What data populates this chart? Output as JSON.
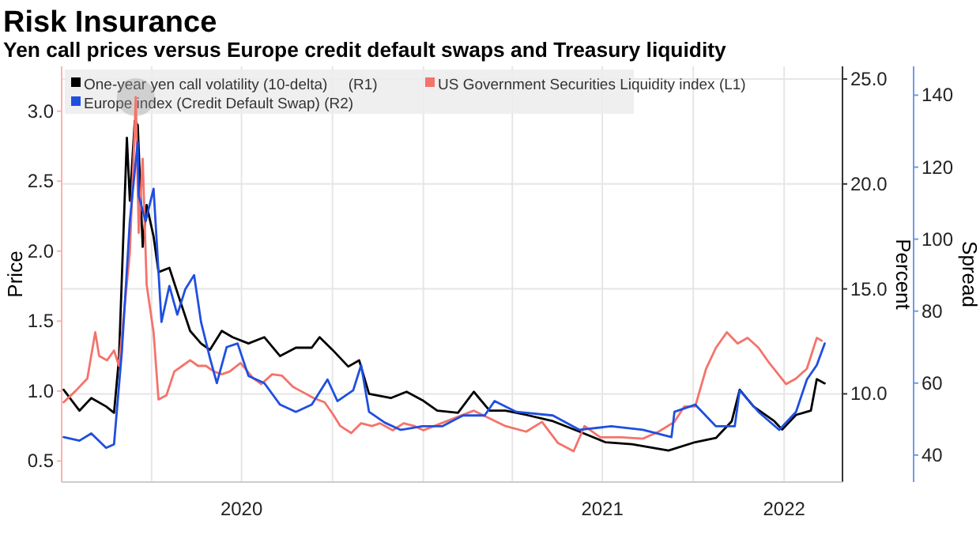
{
  "chart_data": {
    "type": "line",
    "title": "Risk Insurance",
    "subtitle": "Yen call prices versus Europe credit default swaps and Treasury liquidity",
    "ylabel": "Price",
    "y2label": "Percent",
    "y3label": "Spread",
    "xlim": [
      "2020-01-01",
      "2022-03-01"
    ],
    "xticks": [
      {
        "value": "2020-04-01",
        "label": null
      },
      {
        "value": "2020-07-01",
        "label": "2020"
      },
      {
        "value": "2020-10-01",
        "label": null
      },
      {
        "value": "2021-01-01",
        "label": null
      },
      {
        "value": "2021-04-01",
        "label": null
      },
      {
        "value": "2021-07-01",
        "label": "2021"
      },
      {
        "value": "2021-10-01",
        "label": null
      },
      {
        "value": "2022-01-01",
        "label": "2022"
      }
    ],
    "ylim": [
      0.35,
      3.32
    ],
    "yticks": [
      {
        "value": 0.5,
        "label": "0.5"
      },
      {
        "value": 1,
        "label": "1.0"
      },
      {
        "value": 1.5,
        "label": "1.5"
      },
      {
        "value": 2,
        "label": "2.0"
      },
      {
        "value": 2.5,
        "label": "2.5"
      },
      {
        "value": 3,
        "label": "3.0"
      }
    ],
    "y2lim": [
      5.8,
      25.6
    ],
    "y2ticks": [
      {
        "value": 10,
        "label": "10.0"
      },
      {
        "value": 15,
        "label": "15.0"
      },
      {
        "value": 20,
        "label": "20.0"
      },
      {
        "value": 25,
        "label": "25.0"
      }
    ],
    "y3lim": [
      32.5,
      148
    ],
    "y3ticks": [
      40,
      60,
      80,
      100,
      120,
      140
    ],
    "grid": true,
    "legend": "top left",
    "series": [
      {
        "name": "One-year yen call volatility (10-delta)     (R1)",
        "color": "#000000",
        "axis": "y2",
        "x": [
          "2020-01-03",
          "2020-01-19",
          "2020-01-31",
          "2020-02-15",
          "2020-02-23",
          "2020-02-28",
          "2020-03-07",
          "2020-03-10",
          "2020-03-15",
          "2020-03-18",
          "2020-03-23",
          "2020-03-27",
          "2020-04-03",
          "2020-04-08",
          "2020-04-19",
          "2020-04-28",
          "2020-05-10",
          "2020-05-21",
          "2020-05-30",
          "2020-06-11",
          "2020-06-22",
          "2020-07-08",
          "2020-07-24",
          "2020-08-09",
          "2020-08-25",
          "2020-09-10",
          "2020-09-18",
          "2020-10-01",
          "2020-10-17",
          "2020-10-28",
          "2020-11-07",
          "2020-11-29",
          "2020-12-15",
          "2020-12-31",
          "2021-01-15",
          "2021-02-05",
          "2021-02-21",
          "2021-03-09",
          "2021-03-25",
          "2021-04-15",
          "2021-05-12",
          "2021-06-08",
          "2021-07-04",
          "2021-07-31",
          "2021-09-06",
          "2021-10-03",
          "2021-10-24",
          "2021-11-09",
          "2021-11-17",
          "2021-12-01",
          "2021-12-22",
          "2021-12-30",
          "2022-01-13",
          "2022-01-28",
          "2022-02-03",
          "2022-02-11"
        ],
        "values": [
          10.2,
          9.2,
          9.8,
          9.4,
          9.1,
          11.7,
          22.2,
          19.2,
          23.0,
          22.8,
          17.0,
          19.0,
          17.5,
          15.8,
          16.0,
          14.7,
          13.0,
          12.4,
          12.1,
          13.0,
          12.7,
          12.4,
          12.7,
          11.8,
          12.2,
          12.2,
          12.7,
          12.1,
          11.3,
          11.6,
          10.0,
          9.8,
          10.1,
          9.7,
          9.2,
          9.1,
          10.1,
          9.2,
          9.2,
          9.0,
          8.7,
          8.2,
          7.7,
          7.6,
          7.3,
          7.7,
          7.9,
          8.7,
          10.2,
          9.4,
          8.7,
          8.3,
          9.0,
          9.2,
          10.7,
          10.5
        ]
      },
      {
        "name": "US Government Securities Liquidity index (L1)",
        "color": "#f4736b",
        "axis": "y",
        "x": [
          "2020-01-03",
          "2020-01-15",
          "2020-01-27",
          "2020-02-04",
          "2020-02-08",
          "2020-02-16",
          "2020-02-23",
          "2020-02-28",
          "2020-03-03",
          "2020-03-10",
          "2020-03-15",
          "2020-03-16",
          "2020-03-19",
          "2020-03-23",
          "2020-03-27",
          "2020-04-03",
          "2020-04-08",
          "2020-04-16",
          "2020-04-24",
          "2020-05-02",
          "2020-05-10",
          "2020-05-18",
          "2020-05-26",
          "2020-06-03",
          "2020-06-11",
          "2020-06-19",
          "2020-06-30",
          "2020-07-13",
          "2020-07-21",
          "2020-08-01",
          "2020-08-11",
          "2020-08-22",
          "2020-08-30",
          "2020-09-12",
          "2020-09-23",
          "2020-10-01",
          "2020-10-09",
          "2020-10-20",
          "2020-10-30",
          "2020-11-10",
          "2020-11-18",
          "2020-12-01",
          "2020-12-12",
          "2020-12-23",
          "2021-01-01",
          "2021-01-12",
          "2021-02-21",
          "2021-03-25",
          "2021-04-15",
          "2021-05-01",
          "2021-05-17",
          "2021-06-02",
          "2021-06-13",
          "2021-06-29",
          "2021-07-20",
          "2021-08-11",
          "2021-08-27",
          "2021-09-12",
          "2021-09-22",
          "2021-10-03",
          "2021-10-14",
          "2021-10-24",
          "2021-11-04",
          "2021-11-15",
          "2021-11-25",
          "2021-12-06",
          "2021-12-17",
          "2022-01-03",
          "2022-01-13",
          "2022-01-24",
          "2022-02-03",
          "2022-02-08"
        ],
        "values": [
          0.92,
          1.0,
          1.09,
          1.42,
          1.25,
          1.22,
          1.29,
          1.18,
          1.48,
          1.99,
          2.89,
          3.1,
          2.13,
          2.66,
          1.76,
          1.42,
          0.94,
          0.97,
          1.14,
          1.18,
          1.22,
          1.18,
          1.18,
          1.14,
          1.12,
          1.14,
          1.2,
          1.09,
          1.05,
          1.12,
          1.11,
          1.03,
          1.0,
          0.95,
          0.92,
          0.84,
          0.75,
          0.7,
          0.77,
          0.75,
          0.77,
          0.72,
          0.77,
          0.75,
          0.72,
          0.75,
          0.86,
          0.75,
          0.71,
          0.78,
          0.63,
          0.57,
          0.75,
          0.67,
          0.67,
          0.66,
          0.71,
          0.78,
          0.89,
          0.89,
          1.16,
          1.31,
          1.42,
          1.34,
          1.38,
          1.31,
          1.2,
          1.05,
          1.09,
          1.16,
          1.38,
          1.36
        ]
      },
      {
        "name": "Europe index (Credit Default Swap) (R2)",
        "color": "#1f4fe0",
        "axis": "y3",
        "x": [
          "2020-01-03",
          "2020-01-19",
          "2020-01-31",
          "2020-02-15",
          "2020-02-23",
          "2020-03-02",
          "2020-03-10",
          "2020-03-15",
          "2020-03-18",
          "2020-03-19",
          "2020-03-26",
          "2020-04-03",
          "2020-04-11",
          "2020-04-19",
          "2020-04-27",
          "2020-05-05",
          "2020-05-14",
          "2020-05-21",
          "2020-05-30",
          "2020-06-06",
          "2020-06-16",
          "2020-06-27",
          "2020-07-08",
          "2020-07-24",
          "2020-08-09",
          "2020-08-25",
          "2020-09-10",
          "2020-09-26",
          "2020-10-06",
          "2020-10-22",
          "2020-10-30",
          "2020-11-07",
          "2020-11-23",
          "2020-12-09",
          "2020-12-31",
          "2021-01-20",
          "2021-02-10",
          "2021-03-04",
          "2021-03-14",
          "2021-04-05",
          "2021-05-12",
          "2021-06-08",
          "2021-07-10",
          "2021-08-11",
          "2021-09-09",
          "2021-09-12",
          "2021-10-03",
          "2021-10-24",
          "2021-11-12",
          "2021-11-17",
          "2021-12-06",
          "2021-12-27",
          "2022-01-13",
          "2022-01-24",
          "2022-02-03",
          "2022-02-11"
        ],
        "values": [
          45,
          44,
          46,
          42,
          43,
          69,
          105,
          119,
          127,
          112,
          105,
          114,
          77,
          87,
          79,
          86,
          90,
          77,
          67,
          60,
          70,
          71,
          62,
          60,
          54,
          52,
          54,
          61,
          55,
          58,
          65,
          52,
          49,
          47,
          48,
          48,
          51,
          51,
          55,
          52,
          51,
          47,
          48,
          47,
          45,
          52,
          54,
          48,
          48,
          58,
          52,
          47,
          52,
          61,
          65,
          71
        ]
      }
    ]
  }
}
